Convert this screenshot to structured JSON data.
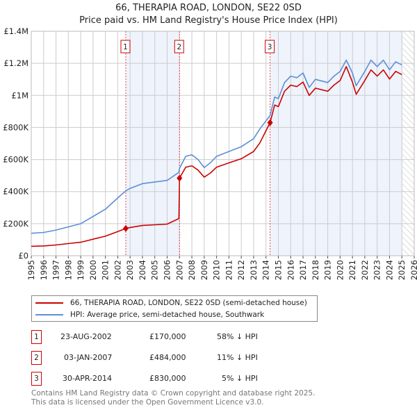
{
  "chart_data": {
    "type": "line",
    "title": "66, THERAPIA ROAD, LONDON, SE22 0SD",
    "subtitle": "Price paid vs. HM Land Registry's House Price Index (HPI)",
    "xlim": [
      1995,
      2026
    ],
    "ylim": [
      0,
      1400000
    ],
    "x_ticks": [
      "1995",
      "1996",
      "1997",
      "1998",
      "1999",
      "2000",
      "2001",
      "2002",
      "2003",
      "2004",
      "2005",
      "2006",
      "2007",
      "2008",
      "2009",
      "2010",
      "2011",
      "2012",
      "2013",
      "2014",
      "2015",
      "2016",
      "2017",
      "2018",
      "2019",
      "2020",
      "2021",
      "2022",
      "2023",
      "2024",
      "2025",
      "2026"
    ],
    "y_ticks": [
      {
        "v": 0,
        "label": "£0"
      },
      {
        "v": 200000,
        "label": "£200K"
      },
      {
        "v": 400000,
        "label": "£400K"
      },
      {
        "v": 600000,
        "label": "£600K"
      },
      {
        "v": 800000,
        "label": "£800K"
      },
      {
        "v": 1000000,
        "label": "£1M"
      },
      {
        "v": 1200000,
        "label": "£1.2M"
      },
      {
        "v": 1400000,
        "label": "£1.4M"
      }
    ],
    "grid": true,
    "series": [
      {
        "name": "66, THERAPIA ROAD, LONDON, SE22 0SD (semi-detached house)",
        "color": "#cc0000",
        "x": [
          1995,
          1996,
          1997,
          1998,
          1999,
          2000,
          2001,
          2002,
          2002.65,
          2003,
          2004,
          2005,
          2006,
          2006.95,
          2007.0,
          2007.5,
          2008,
          2008.5,
          2009,
          2009.5,
          2010,
          2011,
          2012,
          2013,
          2013.5,
          2014.33,
          2014.7,
          2015,
          2015.5,
          2016,
          2016.5,
          2017,
          2017.5,
          2018,
          2019,
          2019.5,
          2020,
          2020.5,
          2021,
          2021.3,
          2022,
          2022.5,
          2023,
          2023.5,
          2024,
          2024.5,
          2025
        ],
        "y": [
          59,
          61,
          67,
          76,
          84,
          103,
          122,
          151,
          170,
          176,
          189,
          193,
          197,
          232,
          484,
          552,
          561,
          534,
          490,
          516,
          552,
          579,
          605,
          650,
          703,
          830,
          940,
          930,
          1026,
          1064,
          1055,
          1083,
          1000,
          1045,
          1026,
          1064,
          1093,
          1180,
          1083,
          1007,
          1093,
          1159,
          1121,
          1159,
          1102,
          1150,
          1130
        ]
      },
      {
        "name": "HPI: Average price, semi-detached house, Southwark",
        "color": "#5b8fd6",
        "x": [
          1995,
          1996,
          1997,
          1998,
          1999,
          2000,
          2001,
          2002,
          2002.65,
          2003,
          2004,
          2005,
          2006,
          2006.95,
          2007.0,
          2007.5,
          2008,
          2008.5,
          2009,
          2009.5,
          2010,
          2011,
          2012,
          2013,
          2013.5,
          2014.33,
          2014.7,
          2015,
          2015.5,
          2016,
          2016.5,
          2017,
          2017.5,
          2018,
          2019,
          2019.5,
          2020,
          2020.5,
          2021,
          2021.3,
          2022,
          2022.5,
          2023,
          2023.5,
          2024,
          2024.5,
          2025
        ],
        "y": [
          140,
          145,
          160,
          180,
          200,
          245,
          290,
          360,
          405,
          420,
          450,
          460,
          470,
          520,
          545,
          620,
          630,
          600,
          550,
          580,
          620,
          650,
          680,
          730,
          790,
          875,
          990,
          980,
          1080,
          1120,
          1110,
          1140,
          1050,
          1100,
          1080,
          1120,
          1150,
          1220,
          1140,
          1060,
          1150,
          1220,
          1180,
          1220,
          1160,
          1210,
          1190
        ]
      }
    ],
    "y_units": "thousand GBP",
    "sales": [
      {
        "id": "1",
        "x": 2002.65,
        "y": 170,
        "date": "23-AUG-2002",
        "price": "£170,000",
        "hpi": "58% ↓ HPI"
      },
      {
        "id": "2",
        "x": 2007.0,
        "y": 484,
        "date": "03-JAN-2007",
        "price": "£484,000",
        "hpi": "11% ↓ HPI"
      },
      {
        "id": "3",
        "x": 2014.33,
        "y": 830,
        "date": "30-APR-2014",
        "price": "£830,000",
        "hpi": "5% ↓ HPI"
      }
    ],
    "shaded": [
      [
        2002.65,
        2007.0
      ],
      [
        2014.33,
        2025.05
      ]
    ],
    "hatched_from": 2025.05
  },
  "legend": {
    "red": "66, THERAPIA ROAD, LONDON, SE22 0SD (semi-detached house)",
    "blue": "HPI: Average price, semi-detached house, Southwark"
  },
  "footer": {
    "line1": "Contains HM Land Registry data © Crown copyright and database right 2025.",
    "line2": "This data is licensed under the Open Government Licence v3.0."
  }
}
